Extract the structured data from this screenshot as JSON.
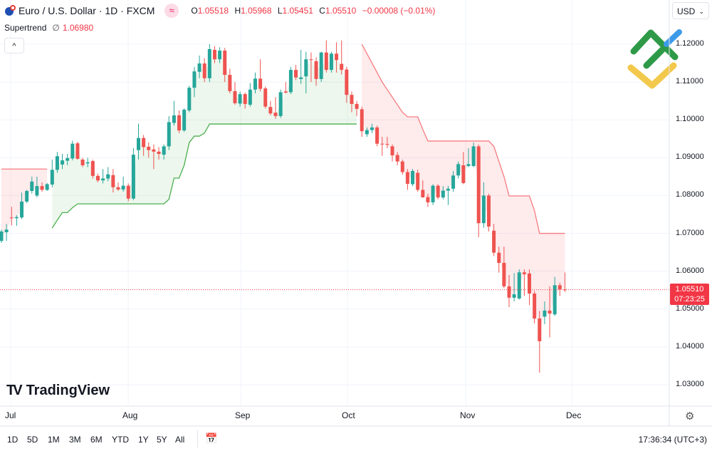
{
  "header": {
    "symbol_title": "Euro / U.S. Dollar · 1D · FXCM",
    "flag_icon": "eu-us-flag-icon",
    "replay_badge": "≈",
    "ohlc": {
      "o_label": "O",
      "o": "1.05518",
      "h_label": "H",
      "h": "1.05968",
      "l_label": "L",
      "l": "1.05451",
      "c_label": "C",
      "c": "1.05510",
      "change": "−0.00008 (−0.01%)"
    },
    "indicator_name": "Supertrend",
    "indicator_null": "∅",
    "indicator_value": "1.06980",
    "collapse_label": "^"
  },
  "currency_select": {
    "value": "USD"
  },
  "price_axis": {
    "labels": [
      "1.12000",
      "1.11000",
      "1.10000",
      "1.09000",
      "1.08000",
      "1.07000",
      "1.06000",
      "1.05000",
      "1.04000",
      "1.03000"
    ],
    "last_price": "1.05510",
    "countdown": "07:23:25"
  },
  "time_axis": {
    "months": [
      "Jul",
      "Aug",
      "Sep",
      "Oct",
      "Nov",
      "Dec"
    ]
  },
  "bottom_bar": {
    "ranges": [
      "1D",
      "5D",
      "1M",
      "3M",
      "6M",
      "YTD",
      "1Y",
      "5Y",
      "All"
    ],
    "clock": "17:36:34 (UTC+3)"
  },
  "branding": {
    "tradingview": "TradingView",
    "watermark": "LiteFinance logo"
  },
  "colors": {
    "up": "#26a69a",
    "down": "#ef5350",
    "supertrend_up": "#4caf50",
    "supertrend_down": "#f77c80",
    "last_price": "#f23645"
  },
  "chart_data": {
    "type": "candlestick",
    "interval": "1D",
    "x_ticks": [
      "Jul",
      "Aug",
      "Sep",
      "Oct",
      "Nov",
      "Dec"
    ],
    "ylim": [
      1.025,
      1.125
    ],
    "y_ticks": [
      1.12,
      1.11,
      1.1,
      1.09,
      1.08,
      1.07,
      1.06,
      1.05,
      1.04,
      1.03
    ],
    "grid": true,
    "last_price": 1.0551,
    "ohlc": [
      [
        1.068,
        1.071,
        1.0675,
        1.0705
      ],
      [
        1.0703,
        1.0725,
        1.068,
        1.071
      ],
      [
        1.0742,
        1.077,
        1.0721,
        1.074
      ],
      [
        1.074,
        1.0748,
        1.072,
        1.0743
      ],
      [
        1.0742,
        1.0808,
        1.0738,
        1.0784
      ],
      [
        1.0784,
        1.0815,
        1.078,
        1.0812
      ],
      [
        1.0812,
        1.085,
        1.0805,
        1.0837
      ],
      [
        1.08,
        1.085,
        1.0795,
        1.0825
      ],
      [
        1.0825,
        1.0835,
        1.081,
        1.0815
      ],
      [
        1.0815,
        1.0833,
        1.0812,
        1.083
      ],
      [
        1.0829,
        1.0895,
        1.0822,
        1.0868
      ],
      [
        1.0868,
        1.0915,
        1.086,
        1.0904
      ],
      [
        1.0882,
        1.091,
        1.087,
        1.0893
      ],
      [
        1.0892,
        1.091,
        1.088,
        1.0899
      ],
      [
        1.0898,
        1.0945,
        1.0893,
        1.0937
      ],
      [
        1.0938,
        1.0942,
        1.0895,
        1.0897
      ],
      [
        1.0895,
        1.09,
        1.0875,
        1.088
      ],
      [
        1.0885,
        1.09,
        1.0875,
        1.0888
      ],
      [
        1.0891,
        1.0895,
        1.0845,
        1.0852
      ],
      [
        1.0852,
        1.0858,
        1.0835,
        1.084
      ],
      [
        1.084,
        1.087,
        1.0832,
        1.0845
      ],
      [
        1.0845,
        1.0875,
        1.0838,
        1.0856
      ],
      [
        1.0854,
        1.087,
        1.0808,
        1.0822
      ],
      [
        1.0822,
        1.0835,
        1.0812,
        1.0816
      ],
      [
        1.0816,
        1.085,
        1.081,
        1.0826
      ],
      [
        1.0826,
        1.0832,
        1.0785,
        1.0792
      ],
      [
        1.0792,
        1.0925,
        1.0788,
        1.0908
      ],
      [
        1.092,
        1.099,
        1.0895,
        1.0952
      ],
      [
        1.0952,
        1.096,
        1.0905,
        1.0928
      ],
      [
        1.0929,
        1.094,
        1.09,
        1.092
      ],
      [
        1.0922,
        1.0935,
        1.087,
        1.0916
      ],
      [
        1.0916,
        1.0928,
        1.0895,
        1.091
      ],
      [
        1.0908,
        1.0935,
        1.0895,
        1.093
      ],
      [
        1.093,
        1.101,
        1.092,
        1.0994
      ],
      [
        1.0992,
        1.105,
        1.0985,
        1.1012
      ],
      [
        1.1012,
        1.1025,
        1.0965,
        1.0972
      ],
      [
        1.0972,
        1.103,
        1.0968,
        1.1027
      ],
      [
        1.1025,
        1.109,
        1.102,
        1.1085
      ],
      [
        1.1085,
        1.114,
        1.106,
        1.1128
      ],
      [
        1.1127,
        1.117,
        1.111,
        1.1149
      ],
      [
        1.1149,
        1.1163,
        1.11,
        1.111
      ],
      [
        1.111,
        1.12,
        1.11,
        1.1187
      ],
      [
        1.1185,
        1.1195,
        1.115,
        1.116
      ],
      [
        1.116,
        1.1192,
        1.115,
        1.1183
      ],
      [
        1.1183,
        1.119,
        1.11,
        1.1119
      ],
      [
        1.1119,
        1.1135,
        1.107,
        1.1076
      ],
      [
        1.1076,
        1.11,
        1.104,
        1.1044
      ],
      [
        1.1043,
        1.1075,
        1.1035,
        1.1068
      ],
      [
        1.1068,
        1.1072,
        1.103,
        1.1042
      ],
      [
        1.104,
        1.1097,
        1.1035,
        1.108
      ],
      [
        1.108,
        1.1125,
        1.107,
        1.1109
      ],
      [
        1.1109,
        1.116,
        1.1075,
        1.1082
      ],
      [
        1.1083,
        1.1088,
        1.103,
        1.1035
      ],
      [
        1.1034,
        1.105,
        1.1012,
        1.1017
      ],
      [
        1.1019,
        1.106,
        1.1003,
        1.101
      ],
      [
        1.101,
        1.108,
        1.1005,
        1.1073
      ],
      [
        1.1075,
        1.11,
        1.107,
        1.1072
      ],
      [
        1.1073,
        1.114,
        1.1068,
        1.1132
      ],
      [
        1.1132,
        1.1145,
        1.1105,
        1.1112
      ],
      [
        1.1108,
        1.1185,
        1.1095,
        1.1112
      ],
      [
        1.1115,
        1.118,
        1.107,
        1.116
      ],
      [
        1.116,
        1.1178,
        1.11,
        1.1158
      ],
      [
        1.1155,
        1.1165,
        1.109,
        1.1108
      ],
      [
        1.1108,
        1.118,
        1.11,
        1.1178
      ],
      [
        1.1178,
        1.121,
        1.1125,
        1.1132
      ],
      [
        1.1132,
        1.118,
        1.1125,
        1.1175
      ],
      [
        1.1175,
        1.1205,
        1.1125,
        1.1158
      ],
      [
        1.1148,
        1.121,
        1.112,
        1.1132
      ],
      [
        1.1133,
        1.114,
        1.1045,
        1.1066
      ],
      [
        1.1066,
        1.1075,
        1.102,
        1.1042
      ],
      [
        1.1042,
        1.105,
        1.101,
        1.1029
      ],
      [
        1.1028,
        1.1035,
        1.0955,
        1.097
      ],
      [
        1.0962,
        1.098,
        1.0955,
        1.0973
      ],
      [
        1.0973,
        1.099,
        1.0965,
        1.098
      ],
      [
        1.098,
        1.0985,
        1.093,
        1.0937
      ],
      [
        1.0937,
        1.0955,
        1.0905,
        1.0935
      ],
      [
        1.0936,
        1.0955,
        1.0925,
        1.0934
      ],
      [
        1.093,
        1.0935,
        1.089,
        1.0906
      ],
      [
        1.0907,
        1.0915,
        1.088,
        1.089
      ],
      [
        1.089,
        1.0895,
        1.0855,
        1.0862
      ],
      [
        1.0862,
        1.087,
        1.0815,
        1.0831
      ],
      [
        1.083,
        1.087,
        1.0825,
        1.0865
      ],
      [
        1.086,
        1.0868,
        1.081,
        1.0815
      ],
      [
        1.0815,
        1.084,
        1.0795,
        1.0795
      ],
      [
        1.0796,
        1.0805,
        1.077,
        1.0782
      ],
      [
        1.0782,
        1.083,
        1.0775,
        1.0826
      ],
      [
        1.0826,
        1.083,
        1.079,
        1.0795
      ],
      [
        1.0795,
        1.0825,
        1.079,
        1.0813
      ],
      [
        1.0813,
        1.0825,
        1.0775,
        1.0818
      ],
      [
        1.0818,
        1.0865,
        1.081,
        1.0853
      ],
      [
        1.0853,
        1.089,
        1.0845,
        1.0883
      ],
      [
        1.088,
        1.0915,
        1.083,
        1.0833
      ],
      [
        1.0878,
        1.0925,
        1.0875,
        1.0883
      ],
      [
        1.0878,
        1.094,
        1.0875,
        1.093
      ],
      [
        1.093,
        1.0935,
        1.069,
        1.0727
      ],
      [
        1.0727,
        1.0835,
        1.0715,
        1.08
      ],
      [
        1.08,
        1.0805,
        1.0705,
        1.0718
      ],
      [
        1.0707,
        1.0725,
        1.064,
        1.0649
      ],
      [
        1.0649,
        1.0665,
        1.0596,
        1.0622
      ],
      [
        1.0622,
        1.0665,
        1.0555,
        1.056
      ],
      [
        1.056,
        1.059,
        1.0505,
        1.053
      ],
      [
        1.053,
        1.0595,
        1.052,
        1.0539
      ],
      [
        1.0528,
        1.0605,
        1.0525,
        1.0597
      ],
      [
        1.0597,
        1.0605,
        1.0535,
        1.0592
      ],
      [
        1.0594,
        1.0605,
        1.051,
        1.0541
      ],
      [
        1.0541,
        1.0548,
        1.0462,
        1.0475
      ],
      [
        1.0475,
        1.0495,
        1.0332,
        1.0415
      ],
      [
        1.048,
        1.052,
        1.046,
        1.0496
      ],
      [
        1.0496,
        1.056,
        1.0425,
        1.0488
      ],
      [
        1.0486,
        1.0585,
        1.0482,
        1.0563
      ],
      [
        1.0563,
        1.057,
        1.0535,
        1.0552
      ],
      [
        1.05518,
        1.05968,
        1.05451,
        1.0551
      ]
    ],
    "supertrend": {
      "down_segments": [
        {
          "start": 0,
          "values": [
            1.087,
            1.087,
            1.087,
            1.087,
            1.087,
            1.087,
            1.087,
            1.087,
            1.087,
            1.087
          ]
        },
        {
          "start": 71,
          "values": [
            1.12,
            1.1175,
            1.115,
            1.1125,
            1.11,
            1.108,
            1.106,
            1.104,
            1.102,
            1.1008,
            1.1008,
            1.1008,
            1.0975,
            1.0944,
            1.0944,
            1.0944,
            1.0944,
            1.0944,
            1.0944,
            1.0944,
            1.0944,
            1.0944,
            1.0944,
            1.0944,
            1.0944,
            1.0944,
            1.093,
            1.089,
            1.085,
            1.0799,
            1.0799,
            1.0799,
            1.0799,
            1.0799,
            1.076,
            1.07,
            1.07,
            1.07,
            1.07,
            1.07,
            1.07
          ]
        }
      ],
      "up_segments": [
        {
          "start": 10,
          "values": [
            1.0714,
            1.0735,
            1.0755,
            1.0755,
            1.0768,
            1.0778,
            1.0778,
            1.0778,
            1.0778,
            1.0778,
            1.0778,
            1.0778,
            1.0778,
            1.0778,
            1.0778,
            1.0778,
            1.0778,
            1.0778,
            1.0778,
            1.0778,
            1.0778,
            1.0778,
            1.0778,
            1.079,
            1.0846,
            1.0846,
            1.088,
            1.094,
            1.0957,
            1.0957,
            1.0965,
            1.0989,
            1.0989,
            1.0989,
            1.0989,
            1.0989,
            1.0989,
            1.0989,
            1.0989,
            1.0989,
            1.0989,
            1.0989,
            1.0989,
            1.0989,
            1.0989,
            1.0989,
            1.0989,
            1.0989,
            1.0989,
            1.0989,
            1.0989,
            1.0989,
            1.0989,
            1.0989,
            1.0989,
            1.0989,
            1.0989,
            1.0989,
            1.0989,
            1.0989,
            1.0989
          ]
        }
      ]
    }
  }
}
